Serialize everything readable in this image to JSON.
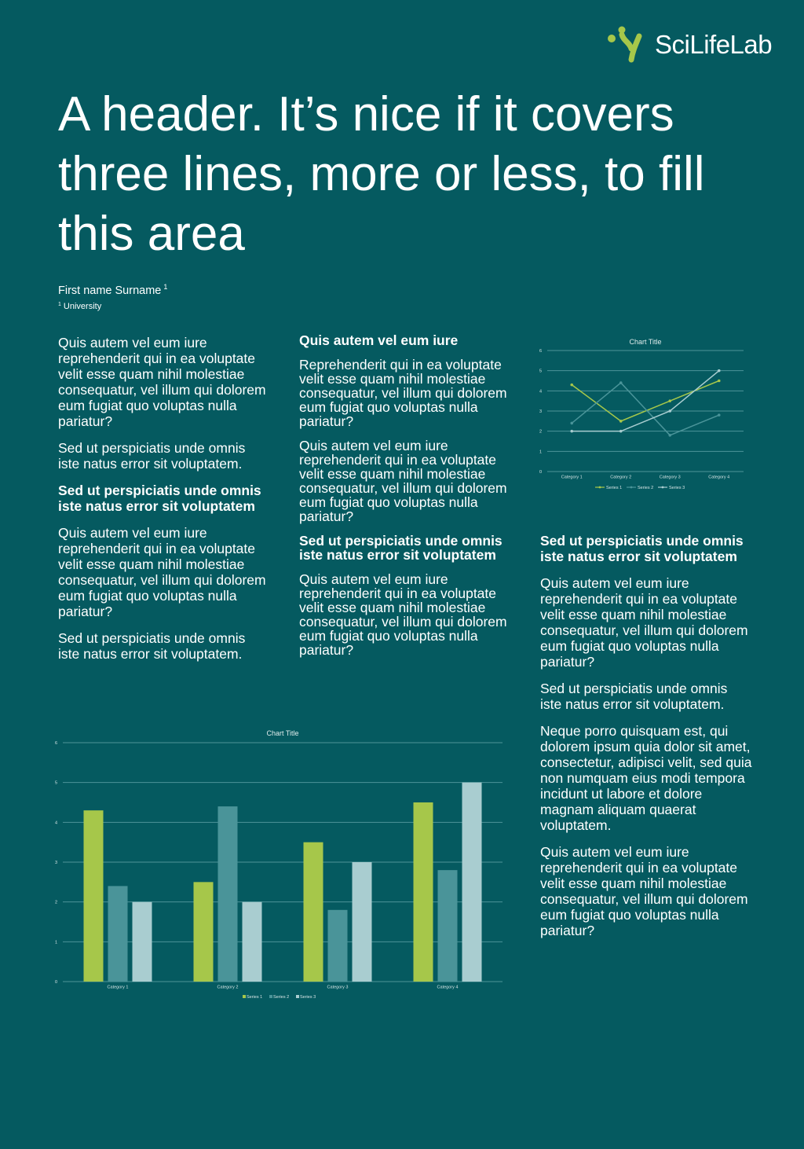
{
  "colors": {
    "background": "#055a60",
    "series1": "#a6c74a",
    "series2": "#4a9499",
    "series3": "#a9cdd0",
    "grid": "#4e9499"
  },
  "logo": {
    "text": "SciLifeLab",
    "icon": "scilifelab-logo-icon"
  },
  "header": {
    "title": "A header. It’s nice if it covers three lines, more or less, to fill this area"
  },
  "authors": {
    "name": "First name Surname",
    "name_sup": "1",
    "affiliation_sup": "1",
    "affiliation": "University"
  },
  "column1": {
    "p1": "Quis autem vel eum iure reprehenderit qui in ea voluptate velit esse quam nihil molestiae consequatur, vel illum qui dolorem eum fugiat quo voluptas nulla pariatur?",
    "p2": "Sed ut perspiciatis unde omnis iste natus error sit voluptatem.",
    "heading": "Sed ut perspiciatis unde omnis iste natus error sit voluptatem",
    "p3": "Quis autem vel eum iure reprehenderit qui in ea voluptate velit esse quam nihil molestiae consequatur, vel illum qui dolorem eum fugiat quo voluptas nulla pariatur?",
    "p4": "Sed ut perspiciatis unde omnis iste natus error sit voluptatem."
  },
  "column2": {
    "heading1": "Quis autem vel eum iure",
    "p1": "Reprehenderit qui in ea voluptate velit esse quam nihil molestiae consequatur, vel illum qui dolorem eum fugiat quo voluptas nulla pariatur?",
    "p2": "Quis autem vel eum iure reprehenderit qui in ea voluptate velit esse quam nihil molestiae consequatur, vel illum qui dolorem eum fugiat quo voluptas nulla pariatur?",
    "heading2": "Sed ut perspiciatis unde omnis iste natus error sit voluptatem",
    "p3": "Quis autem vel eum iure reprehenderit qui in ea voluptate velit esse quam nihil molestiae consequatur, vel illum qui dolorem eum fugiat quo voluptas nulla pariatur?"
  },
  "column3": {
    "heading": "Sed ut perspiciatis unde omnis iste natus error sit voluptatem",
    "p1": "Quis autem vel eum iure reprehenderit qui in ea voluptate velit esse quam nihil molestiae consequatur, vel illum qui dolorem eum fugiat quo voluptas nulla pariatur?",
    "p2": "Sed ut perspiciatis unde omnis iste natus error sit voluptatem.",
    "p3": "Neque porro quisquam est, qui dolorem ipsum quia dolor sit amet, consectetur, adipisci velit, sed quia non numquam eius modi tempora incidunt ut labore et dolore magnam aliquam quaerat voluptatem.",
    "p4": "Quis autem vel eum iure reprehenderit qui in ea voluptate velit esse quam nihil molestiae consequatur, vel illum qui dolorem eum fugiat quo voluptas nulla pariatur?"
  },
  "chart_data": [
    {
      "type": "line",
      "title": "Chart Title",
      "categories": [
        "Category 1",
        "Category 2",
        "Category 3",
        "Category 4"
      ],
      "series": [
        {
          "name": "Series 1",
          "values": [
            4.3,
            2.5,
            3.5,
            4.5
          ]
        },
        {
          "name": "Series 2",
          "values": [
            2.4,
            4.4,
            1.8,
            2.8
          ]
        },
        {
          "name": "Series 3",
          "values": [
            2,
            2,
            3,
            5
          ]
        }
      ],
      "ylim": [
        0,
        6
      ],
      "yticks": [
        0,
        1,
        2,
        3,
        4,
        5,
        6
      ],
      "grid": true,
      "legend": "bottom"
    },
    {
      "type": "bar",
      "title": "Chart Title",
      "categories": [
        "Category 1",
        "Category 2",
        "Category 3",
        "Category 4"
      ],
      "series": [
        {
          "name": "Series 1",
          "values": [
            4.3,
            2.5,
            3.5,
            4.5
          ]
        },
        {
          "name": "Series 2",
          "values": [
            2.4,
            4.4,
            1.8,
            2.8
          ]
        },
        {
          "name": "Series 3",
          "values": [
            2,
            2,
            3,
            5
          ]
        }
      ],
      "ylim": [
        0,
        6
      ],
      "yticks": [
        0,
        1,
        2,
        3,
        4,
        5,
        6
      ],
      "grid": true,
      "legend": "bottom"
    }
  ]
}
